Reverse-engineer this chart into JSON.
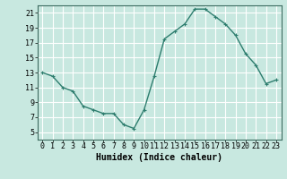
{
  "x": [
    0,
    1,
    2,
    3,
    4,
    5,
    6,
    7,
    8,
    9,
    10,
    11,
    12,
    13,
    14,
    15,
    16,
    17,
    18,
    19,
    20,
    21,
    22,
    23
  ],
  "y": [
    13,
    12.5,
    11,
    10.5,
    8.5,
    8,
    7.5,
    7.5,
    6,
    5.5,
    8,
    12.5,
    17.5,
    18.5,
    19.5,
    21.5,
    21.5,
    20.5,
    19.5,
    18,
    15.5,
    14,
    11.5,
    12
  ],
  "line_color": "#2d7d6e",
  "marker": "+",
  "marker_size": 3,
  "line_width": 1.0,
  "bg_color": "#c8e8e0",
  "grid_color": "#ffffff",
  "xlabel": "Humidex (Indice chaleur)",
  "xlabel_fontsize": 7,
  "tick_fontsize": 6,
  "xlim": [
    -0.5,
    23.5
  ],
  "ylim": [
    4,
    22
  ],
  "yticks": [
    5,
    7,
    9,
    11,
    13,
    15,
    17,
    19,
    21
  ],
  "xtick_labels": [
    "0",
    "1",
    "2",
    "3",
    "4",
    "5",
    "6",
    "7",
    "8",
    "9",
    "10",
    "11",
    "12",
    "13",
    "14",
    "15",
    "16",
    "17",
    "18",
    "19",
    "20",
    "21",
    "22",
    "23"
  ]
}
